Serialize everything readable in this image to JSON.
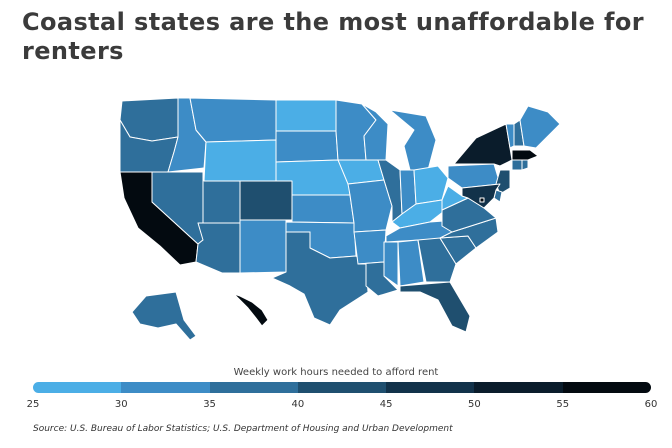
{
  "title": "Coastal  states are the most unaffordable for renters",
  "legend": {
    "title": "Weekly work hours needed to afford rent",
    "ticks": [
      "25",
      "30",
      "35",
      "40",
      "45",
      "50",
      "55",
      "60"
    ],
    "bins": [
      {
        "range": "25-30",
        "color": "#4baee6"
      },
      {
        "range": "30-35",
        "color": "#3d8cc6"
      },
      {
        "range": "35-40",
        "color": "#2f6f9b"
      },
      {
        "range": "40-45",
        "color": "#1f4f6f"
      },
      {
        "range": "45-50",
        "color": "#12324a"
      },
      {
        "range": "50-55",
        "color": "#0a1c2b"
      },
      {
        "range": "55-60",
        "color": "#030a10"
      }
    ]
  },
  "source": "Source:  U.S. Bureau of Labor Statistics; U.S. Department of Housing and Urban Development",
  "map_data": {
    "WA": 2,
    "OR": 2,
    "CA": 6,
    "NV": 2,
    "ID": 1,
    "MT": 1,
    "WY": 0,
    "UT": 2,
    "AZ": 2,
    "CO": 3,
    "NM": 1,
    "ND": 0,
    "SD": 1,
    "NE": 0,
    "KS": 1,
    "OK": 1,
    "TX": 2,
    "MN": 1,
    "IA": 0,
    "MO": 1,
    "AR": 1,
    "LA": 2,
    "WI": 1,
    "IL": 2,
    "MI": 1,
    "IN": 1,
    "OH": 0,
    "KY": 0,
    "TN": 1,
    "MS": 1,
    "AL": 1,
    "GA": 2,
    "FL": 3,
    "SC": 2,
    "NC": 2,
    "VA": 2,
    "WV": 0,
    "PA": 1,
    "NY": 5,
    "VT": 1,
    "NH": 2,
    "ME": 1,
    "MA": 6,
    "CT": 2,
    "RI": 2,
    "NJ": 3,
    "DE": 2,
    "MD": 4,
    "DC": 6,
    "AK": 2,
    "HI": 6
  }
}
